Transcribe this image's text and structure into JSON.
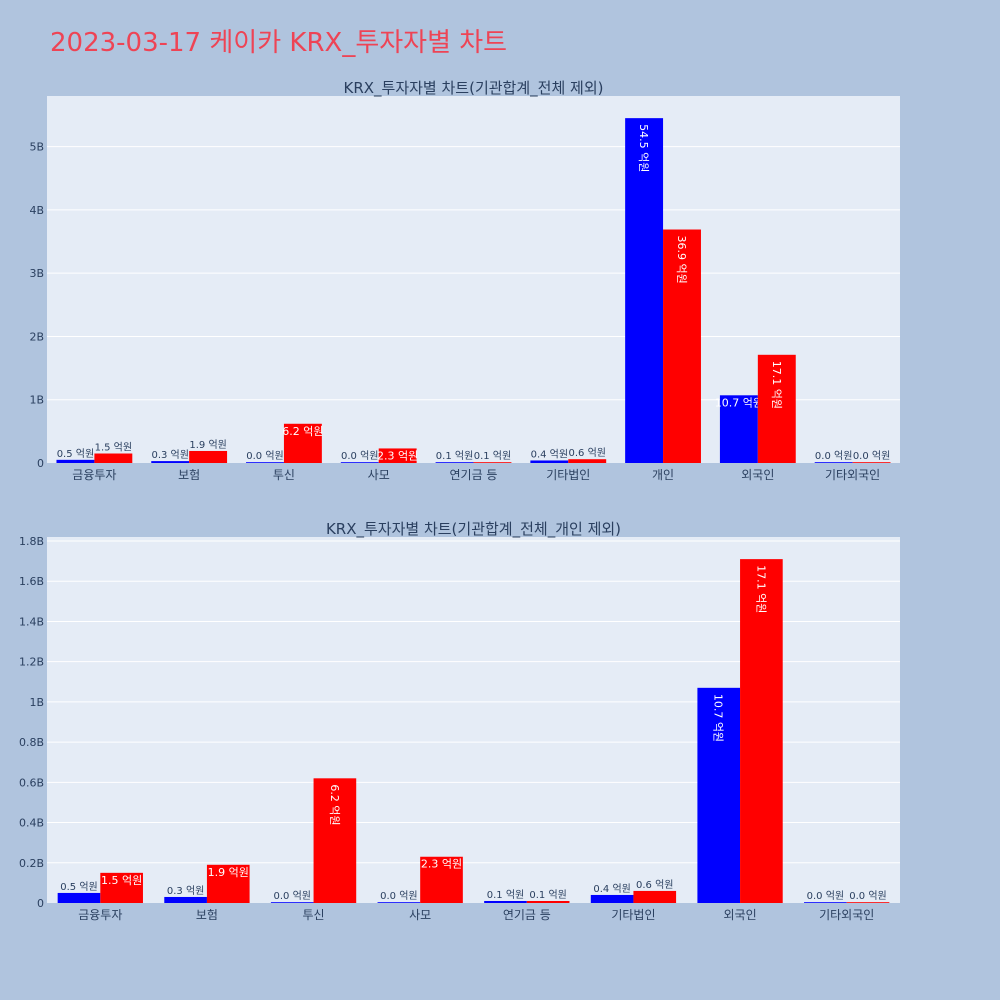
{
  "page": {
    "title": "2023-03-17 케이카 KRX_투자자별 차트"
  },
  "chart_data": [
    {
      "type": "bar",
      "title": "KRX_투자자별 차트(기관합계_전체 제외)",
      "categories": [
        "금융투자",
        "보험",
        "투신",
        "사모",
        "연기금 등",
        "기타법인",
        "개인",
        "외국인",
        "기타외국인"
      ],
      "series": [
        {
          "color": "#0000ff",
          "values": [
            0.05,
            0.03,
            0.0,
            0.0,
            0.01,
            0.04,
            5.45,
            1.07,
            0.0
          ],
          "labels": [
            "0.5 억원",
            "0.3 억원",
            "0.0 억원",
            "0.0 억원",
            "0.1 억원",
            "0.4 억원",
            "54.5 억원",
            "10.7 억원",
            "0.0 억원"
          ]
        },
        {
          "color": "#ff0000",
          "values": [
            0.15,
            0.19,
            0.62,
            0.23,
            0.01,
            0.06,
            3.69,
            1.71,
            0.0
          ],
          "labels": [
            "1.5 억원",
            "1.9 억원",
            "6.2 억원",
            "2.3 억원",
            "0.1 억원",
            "0.6 억원",
            "36.9 억원",
            "17.1 억원",
            "0.0 억원"
          ]
        }
      ],
      "ylim": [
        0,
        5.8
      ],
      "ytick_values": [
        0,
        1,
        2,
        3,
        4,
        5
      ],
      "ytick_labels": [
        "0",
        "1B",
        "2B",
        "3B",
        "4B",
        "5B"
      ],
      "grid": true,
      "legend": "none"
    },
    {
      "type": "bar",
      "title": "KRX_투자자별 차트(기관합계_전체_개인 제외)",
      "categories": [
        "금융투자",
        "보험",
        "투신",
        "사모",
        "연기금 등",
        "기타법인",
        "외국인",
        "기타외국인"
      ],
      "series": [
        {
          "color": "#0000ff",
          "values": [
            0.05,
            0.03,
            0.0,
            0.0,
            0.01,
            0.04,
            1.07,
            0.0
          ],
          "labels": [
            "0.5 억원",
            "0.3 억원",
            "0.0 억원",
            "0.0 억원",
            "0.1 억원",
            "0.4 억원",
            "10.7 억원",
            "0.0 억원"
          ]
        },
        {
          "color": "#ff0000",
          "values": [
            0.15,
            0.19,
            0.62,
            0.23,
            0.01,
            0.06,
            1.71,
            0.0
          ],
          "labels": [
            "1.5 억원",
            "1.9 억원",
            "6.2 억원",
            "2.3 억원",
            "0.1 억원",
            "0.6 억원",
            "17.1 억원",
            "0.0 억원"
          ]
        }
      ],
      "ylim": [
        0,
        1.82
      ],
      "ytick_values": [
        0,
        0.2,
        0.4,
        0.6,
        0.8,
        1.0,
        1.2,
        1.4,
        1.6,
        1.8
      ],
      "ytick_labels": [
        "0",
        "0.2B",
        "0.4B",
        "0.6B",
        "0.8B",
        "1B",
        "1.2B",
        "1.4B",
        "1.6B",
        "1.8B"
      ],
      "grid": true,
      "legend": "none"
    }
  ]
}
